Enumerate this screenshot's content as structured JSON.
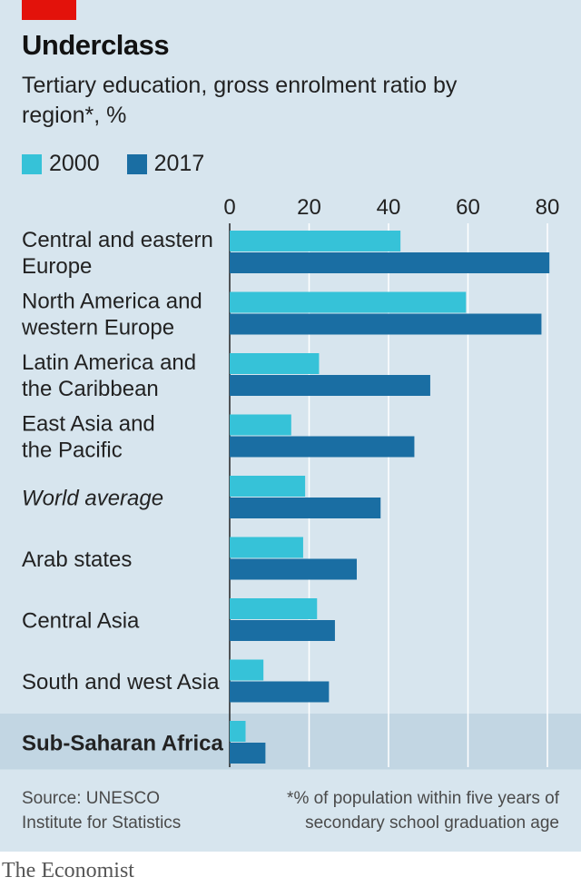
{
  "header": {
    "title": "Underclass",
    "subtitle": "Tertiary education, gross enrolment ratio by region*, %"
  },
  "legend": [
    {
      "label": "2000",
      "color": "#36c2d8"
    },
    {
      "label": "2017",
      "color": "#1a6ea3"
    }
  ],
  "chart_data": {
    "type": "bar",
    "orientation": "horizontal",
    "title": "Underclass",
    "subtitle": "Tertiary education, gross enrolment ratio by region*, %",
    "xlabel": "",
    "ylabel": "",
    "xlim": [
      0,
      80
    ],
    "ticks": [
      0,
      20,
      40,
      60,
      80
    ],
    "grid": true,
    "legend_position": "top-left",
    "categories": [
      [
        "Central and eastern",
        "Europe"
      ],
      [
        "North America and",
        "western Europe"
      ],
      [
        "Latin America and",
        "the Caribbean"
      ],
      [
        "East Asia and",
        "the Pacific"
      ],
      [
        "World average"
      ],
      [
        "Arab states"
      ],
      [
        "Central Asia"
      ],
      [
        "South and west Asia"
      ],
      [
        "Sub-Saharan Africa"
      ]
    ],
    "category_styles": [
      "normal",
      "normal",
      "normal",
      "normal",
      "italic",
      "normal",
      "normal",
      "normal",
      "bold-highlight"
    ],
    "series": [
      {
        "name": "2000",
        "color": "#36c2d8",
        "values": [
          43,
          59.5,
          22.5,
          15.5,
          19,
          18.5,
          22,
          8.5,
          4
        ]
      },
      {
        "name": "2017",
        "color": "#1a6ea3",
        "values": [
          80.5,
          78.5,
          50.5,
          46.5,
          38,
          32,
          26.5,
          25,
          9
        ]
      }
    ]
  },
  "footer": {
    "source_lines": [
      "Source: UNESCO",
      "Institute for Statistics"
    ],
    "note_lines": [
      "*% of population within five years of",
      "secondary school graduation age"
    ],
    "brand": "The Economist"
  },
  "colors": {
    "panel": "#d7e5ee",
    "accent": "#e3120b",
    "highlight_row": "#c2d6e3",
    "grid": "#ffffff"
  }
}
